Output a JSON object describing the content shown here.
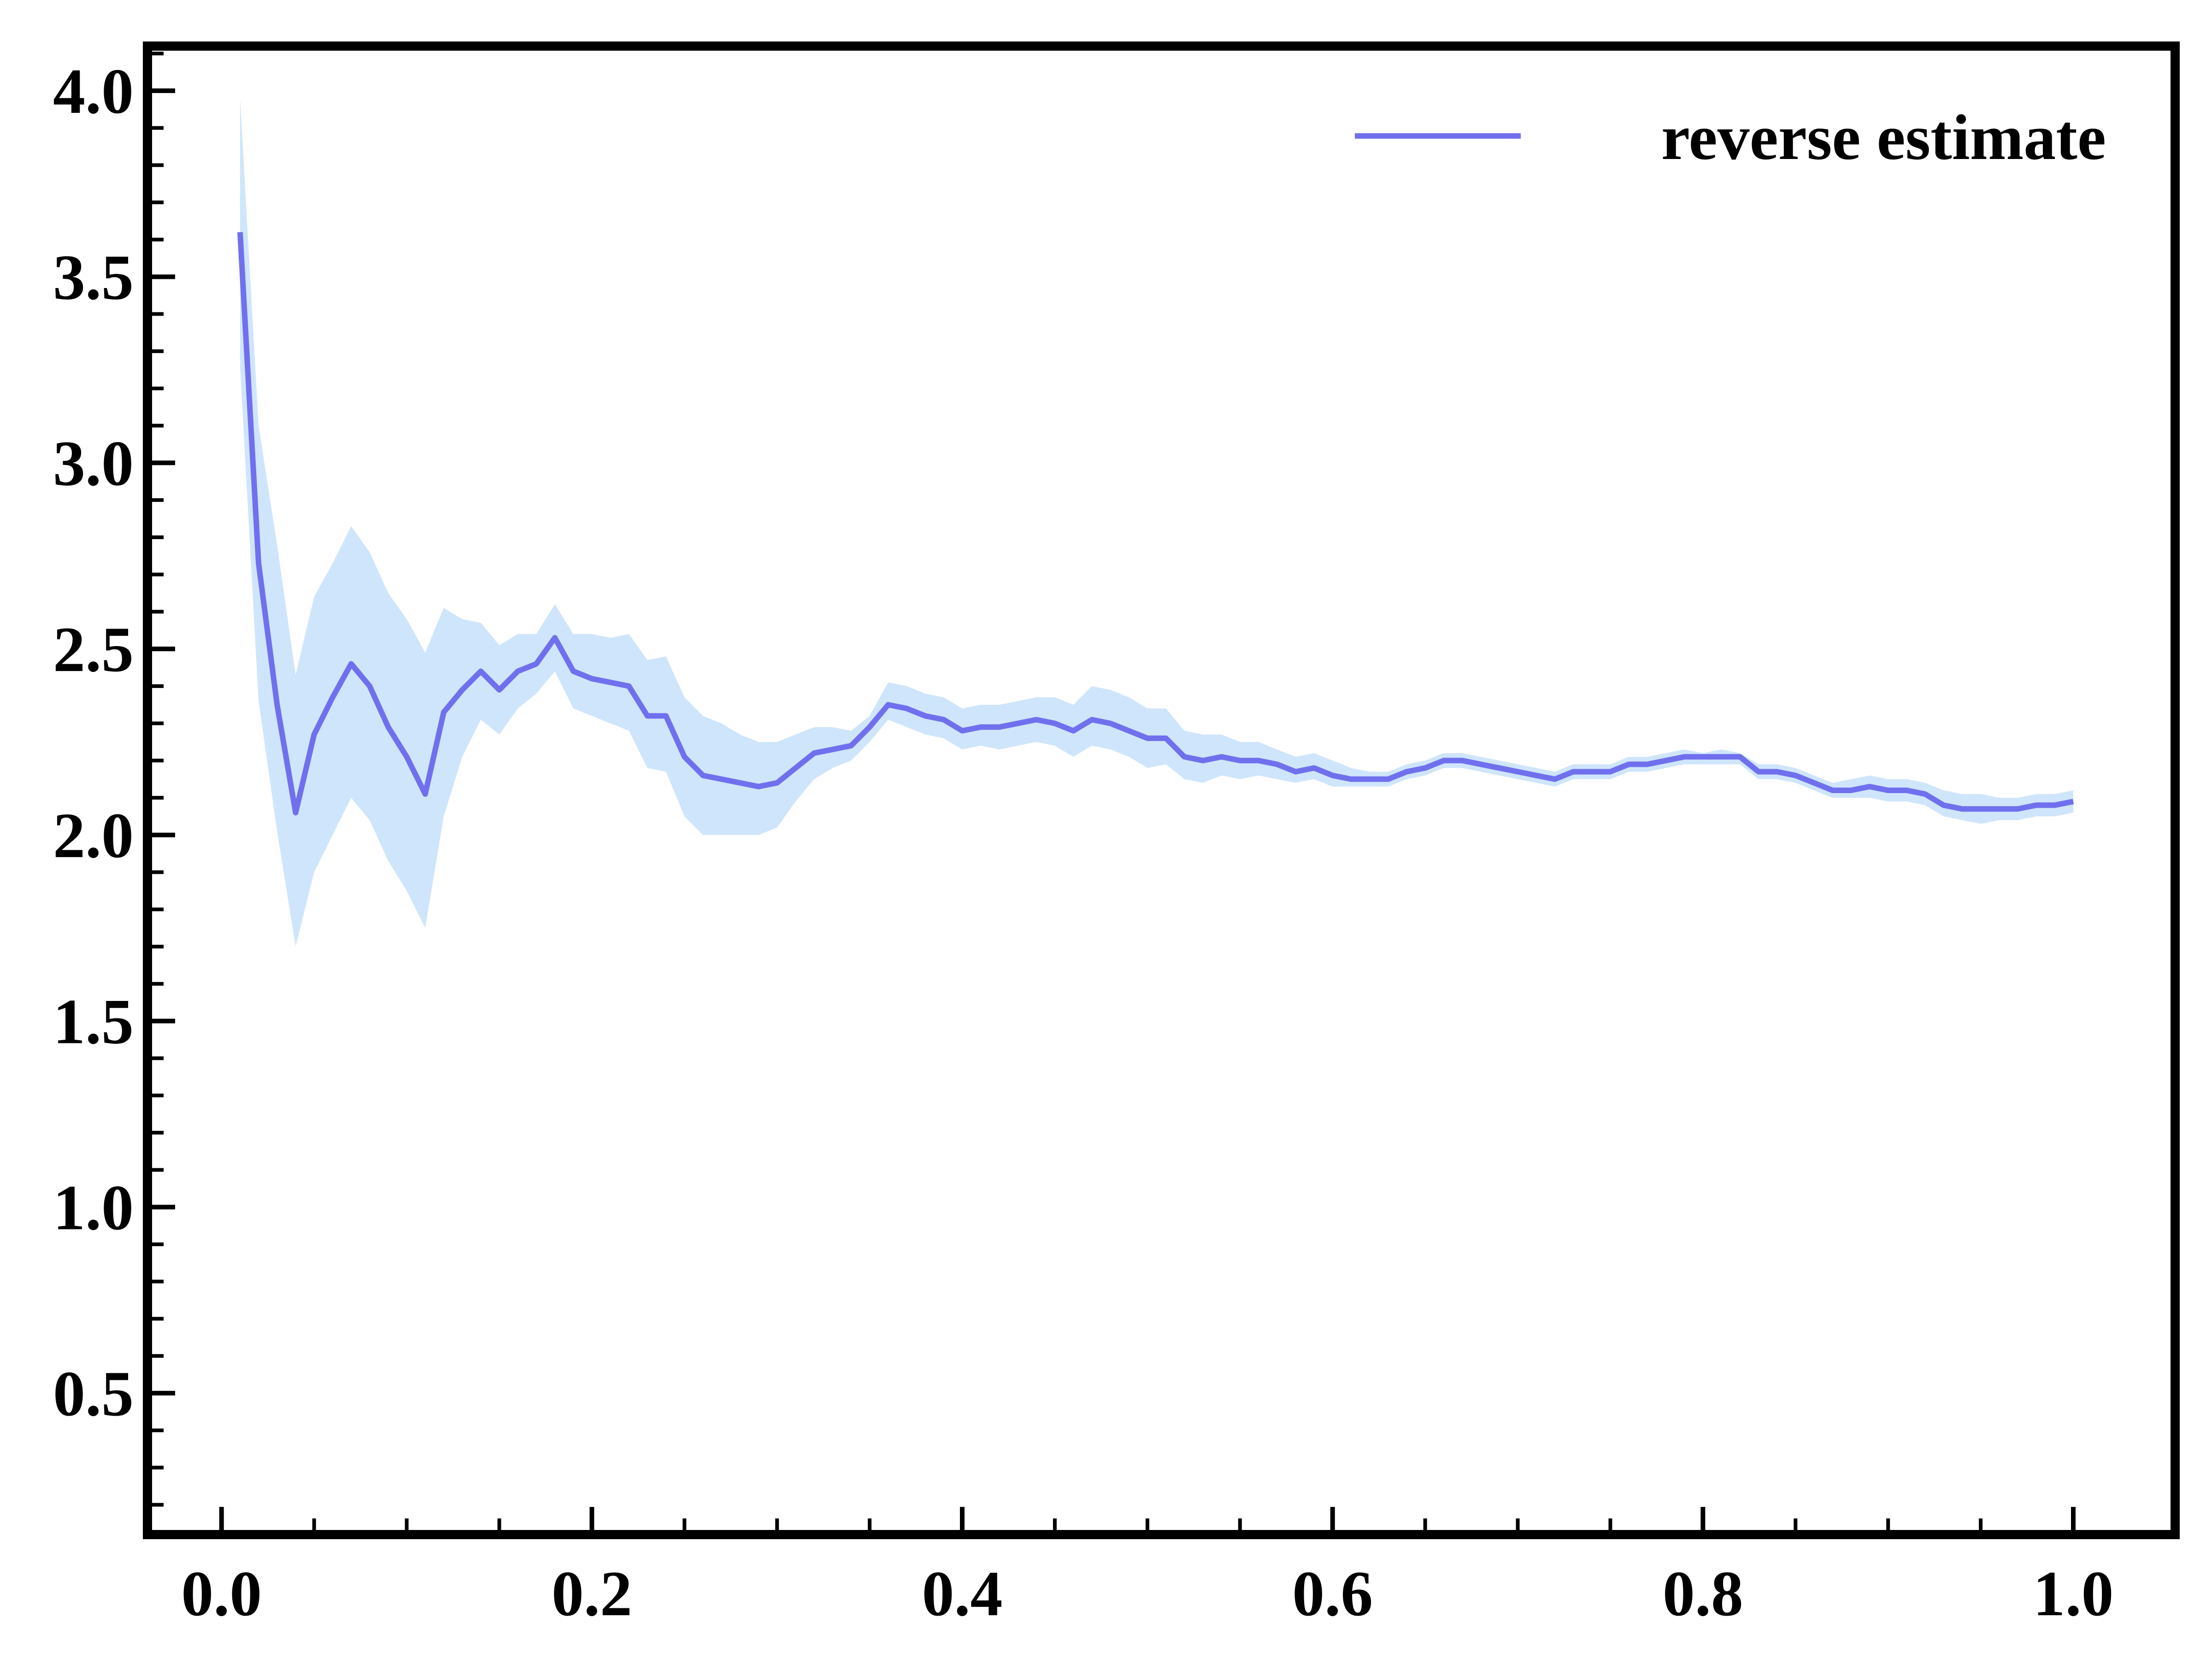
{
  "chart_data": {
    "type": "line",
    "title": "",
    "xlabel": "",
    "ylabel": "",
    "xlim": [
      -0.04,
      1.055
    ],
    "ylim": [
      0.12,
      4.12
    ],
    "xticks": [
      "0.0",
      "0.2",
      "0.4",
      "0.6",
      "0.8",
      "1.0"
    ],
    "yticks": [
      "0.5",
      "1.0",
      "1.5",
      "2.0",
      "2.5",
      "3.0",
      "3.5",
      "4.0"
    ],
    "grid": false,
    "legend_position": "top-right",
    "colors": {
      "line": "#7070ee",
      "band": "#cfe5fb",
      "axes": "#000000"
    },
    "series": [
      {
        "name": "reverse estimate",
        "x": [
          0.01,
          0.02,
          0.03,
          0.04,
          0.05,
          0.06,
          0.07,
          0.08,
          0.09,
          0.1,
          0.11,
          0.12,
          0.13,
          0.14,
          0.15,
          0.16,
          0.17,
          0.18,
          0.19,
          0.2,
          0.21,
          0.22,
          0.23,
          0.24,
          0.25,
          0.26,
          0.27,
          0.28,
          0.29,
          0.3,
          0.31,
          0.32,
          0.33,
          0.34,
          0.35,
          0.36,
          0.37,
          0.38,
          0.39,
          0.4,
          0.41,
          0.42,
          0.43,
          0.44,
          0.45,
          0.46,
          0.47,
          0.48,
          0.49,
          0.5,
          0.51,
          0.52,
          0.53,
          0.54,
          0.55,
          0.56,
          0.57,
          0.58,
          0.59,
          0.6,
          0.61,
          0.62,
          0.63,
          0.64,
          0.65,
          0.66,
          0.67,
          0.68,
          0.69,
          0.7,
          0.71,
          0.72,
          0.73,
          0.74,
          0.75,
          0.76,
          0.77,
          0.78,
          0.79,
          0.8,
          0.81,
          0.82,
          0.83,
          0.84,
          0.85,
          0.86,
          0.87,
          0.88,
          0.89,
          0.9,
          0.91,
          0.92,
          0.93,
          0.94,
          0.95,
          0.96,
          0.97,
          0.98,
          0.99,
          1.0
        ],
        "y": [
          3.62,
          2.73,
          2.35,
          2.06,
          2.27,
          2.37,
          2.46,
          2.4,
          2.29,
          2.21,
          2.11,
          2.33,
          2.39,
          2.44,
          2.39,
          2.44,
          2.46,
          2.53,
          2.44,
          2.42,
          2.41,
          2.4,
          2.32,
          2.32,
          2.21,
          2.16,
          2.15,
          2.14,
          2.13,
          2.14,
          2.18,
          2.22,
          2.23,
          2.24,
          2.29,
          2.35,
          2.34,
          2.32,
          2.31,
          2.28,
          2.29,
          2.29,
          2.3,
          2.31,
          2.3,
          2.28,
          2.31,
          2.3,
          2.28,
          2.26,
          2.26,
          2.21,
          2.2,
          2.21,
          2.2,
          2.2,
          2.19,
          2.17,
          2.18,
          2.16,
          2.15,
          2.15,
          2.15,
          2.17,
          2.18,
          2.2,
          2.2,
          2.19,
          2.18,
          2.17,
          2.16,
          2.15,
          2.17,
          2.17,
          2.17,
          2.19,
          2.19,
          2.2,
          2.21,
          2.21,
          2.21,
          2.21,
          2.17,
          2.17,
          2.16,
          2.14,
          2.12,
          2.12,
          2.13,
          2.12,
          2.12,
          2.11,
          2.08,
          2.07,
          2.07,
          2.07,
          2.07,
          2.08,
          2.08,
          2.09
        ],
        "upper": [
          3.98,
          3.1,
          2.78,
          2.43,
          2.64,
          2.73,
          2.83,
          2.76,
          2.65,
          2.58,
          2.49,
          2.61,
          2.58,
          2.57,
          2.51,
          2.54,
          2.54,
          2.62,
          2.54,
          2.54,
          2.53,
          2.54,
          2.47,
          2.48,
          2.37,
          2.32,
          2.3,
          2.27,
          2.25,
          2.25,
          2.27,
          2.29,
          2.29,
          2.28,
          2.32,
          2.41,
          2.4,
          2.38,
          2.37,
          2.34,
          2.35,
          2.35,
          2.36,
          2.37,
          2.37,
          2.35,
          2.4,
          2.39,
          2.37,
          2.34,
          2.34,
          2.28,
          2.27,
          2.27,
          2.25,
          2.25,
          2.23,
          2.21,
          2.22,
          2.2,
          2.18,
          2.17,
          2.17,
          2.19,
          2.2,
          2.22,
          2.22,
          2.21,
          2.2,
          2.19,
          2.18,
          2.17,
          2.19,
          2.19,
          2.19,
          2.21,
          2.21,
          2.22,
          2.23,
          2.22,
          2.23,
          2.22,
          2.19,
          2.19,
          2.18,
          2.16,
          2.14,
          2.15,
          2.16,
          2.15,
          2.15,
          2.14,
          2.12,
          2.11,
          2.11,
          2.1,
          2.1,
          2.11,
          2.11,
          2.12
        ],
        "lower": [
          3.26,
          2.36,
          2.01,
          1.7,
          1.9,
          2.0,
          2.1,
          2.04,
          1.93,
          1.85,
          1.75,
          2.05,
          2.21,
          2.31,
          2.27,
          2.34,
          2.38,
          2.44,
          2.34,
          2.32,
          2.3,
          2.28,
          2.18,
          2.17,
          2.05,
          2.0,
          2.0,
          2.0,
          2.0,
          2.02,
          2.09,
          2.15,
          2.18,
          2.2,
          2.25,
          2.31,
          2.29,
          2.27,
          2.26,
          2.23,
          2.24,
          2.23,
          2.24,
          2.25,
          2.24,
          2.21,
          2.24,
          2.23,
          2.21,
          2.18,
          2.19,
          2.15,
          2.14,
          2.16,
          2.15,
          2.16,
          2.15,
          2.14,
          2.15,
          2.13,
          2.13,
          2.13,
          2.13,
          2.15,
          2.16,
          2.18,
          2.18,
          2.17,
          2.16,
          2.15,
          2.14,
          2.13,
          2.15,
          2.15,
          2.15,
          2.17,
          2.17,
          2.18,
          2.19,
          2.19,
          2.19,
          2.19,
          2.15,
          2.15,
          2.14,
          2.12,
          2.1,
          2.1,
          2.1,
          2.09,
          2.09,
          2.08,
          2.05,
          2.04,
          2.03,
          2.04,
          2.04,
          2.05,
          2.05,
          2.06
        ]
      }
    ]
  }
}
